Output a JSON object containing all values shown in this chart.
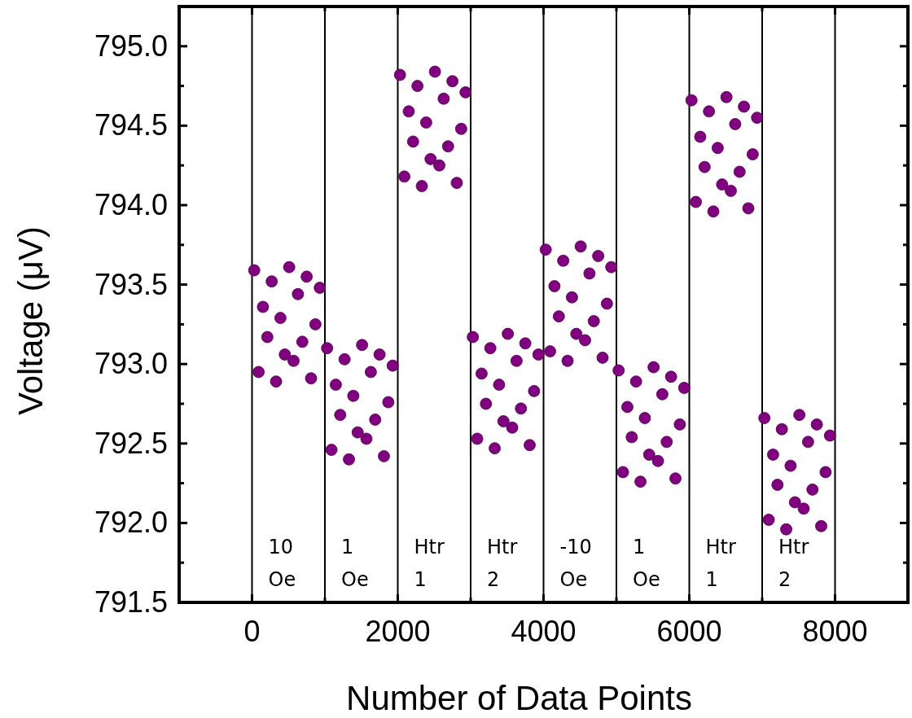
{
  "chart_data": {
    "type": "scatter",
    "xlabel": "Number of Data Points",
    "ylabel": "Voltage (μV)",
    "xlim": [
      -1000,
      9000
    ],
    "ylim": [
      791.5,
      795.25
    ],
    "xticks": [
      0,
      {
        "value": 1000,
        "label": null
      },
      2000,
      {
        "value": 3000,
        "label": null
      },
      4000,
      {
        "value": 5000,
        "label": null
      },
      6000,
      {
        "value": 7000,
        "label": null
      },
      8000
    ],
    "yticks": [
      {
        "value": 791.5,
        "label": "791.5"
      },
      {
        "value": 791.75,
        "label": null
      },
      {
        "value": 792,
        "label": "792.0"
      },
      {
        "value": 792.25,
        "label": null
      },
      {
        "value": 792.5,
        "label": "792.5"
      },
      {
        "value": 792.75,
        "label": null
      },
      {
        "value": 793,
        "label": "793.0"
      },
      {
        "value": 793.25,
        "label": null
      },
      {
        "value": 793.5,
        "label": "793.5"
      },
      {
        "value": 793.75,
        "label": null
      },
      {
        "value": 794,
        "label": "794.0"
      },
      {
        "value": 794.25,
        "label": null
      },
      {
        "value": 794.5,
        "label": "794.5"
      },
      {
        "value": 794.75,
        "label": null
      },
      {
        "value": 795,
        "label": "795.0"
      }
    ],
    "grid": false,
    "marker": "circle",
    "ref_lines": [
      {
        "axis": "x",
        "value": 0,
        "color": "#000000"
      },
      {
        "axis": "x",
        "value": 1000,
        "color": "#000000"
      },
      {
        "axis": "x",
        "value": 2000,
        "color": "#000000"
      },
      {
        "axis": "x",
        "value": 3000,
        "color": "#000000"
      },
      {
        "axis": "x",
        "value": 4000,
        "color": "#000000"
      },
      {
        "axis": "x",
        "value": 5000,
        "color": "#000000"
      },
      {
        "axis": "x",
        "value": 6000,
        "color": "#000000"
      },
      {
        "axis": "x",
        "value": 7000,
        "color": "#000000"
      },
      {
        "axis": "x",
        "value": 8000,
        "color": "#000000"
      }
    ],
    "annotations": [
      "10\nOe",
      "1\nOe",
      "Htr\n1",
      "Htr\n2",
      "-10\nOe",
      "1\nOe",
      "Htr\n1",
      "Htr\n2"
    ],
    "series": [
      {
        "color": "#800080",
        "x": [
          30,
          90,
          150,
          210,
          270,
          330,
          390,
          450,
          510,
          570,
          630,
          690,
          750,
          810,
          870,
          930
        ],
        "values": [
          793.59,
          792.95,
          793.36,
          793.17,
          793.52,
          792.89,
          793.29,
          793.06,
          793.61,
          793.02,
          793.44,
          793.14,
          793.55,
          792.91,
          793.25,
          793.48
        ]
      },
      {
        "color": "#800080",
        "x": [
          1030,
          1090,
          1150,
          1210,
          1270,
          1330,
          1390,
          1450,
          1510,
          1570,
          1630,
          1690,
          1750,
          1810,
          1870,
          1930
        ],
        "values": [
          793.1,
          792.46,
          792.87,
          792.68,
          793.03,
          792.4,
          792.8,
          792.57,
          793.12,
          792.53,
          792.95,
          792.65,
          793.06,
          792.42,
          792.76,
          792.99
        ]
      },
      {
        "color": "#800080",
        "x": [
          2030,
          2090,
          2150,
          2210,
          2270,
          2330,
          2390,
          2450,
          2510,
          2570,
          2630,
          2690,
          2750,
          2810,
          2870,
          2930
        ],
        "values": [
          794.82,
          794.18,
          794.59,
          794.4,
          794.75,
          794.12,
          794.52,
          794.29,
          794.84,
          794.25,
          794.67,
          794.37,
          794.78,
          794.14,
          794.48,
          794.71
        ]
      },
      {
        "color": "#800080",
        "x": [
          3030,
          3090,
          3150,
          3210,
          3270,
          3330,
          3390,
          3450,
          3510,
          3570,
          3630,
          3690,
          3750,
          3810,
          3870,
          3930
        ],
        "values": [
          793.17,
          792.53,
          792.94,
          792.75,
          793.1,
          792.47,
          792.87,
          792.64,
          793.19,
          792.6,
          793.02,
          792.72,
          793.13,
          792.49,
          792.83,
          793.06
        ]
      },
      {
        "color": "#800080",
        "x": [
          4030,
          4090,
          4150,
          4210,
          4270,
          4330,
          4390,
          4450,
          4510,
          4570,
          4630,
          4690,
          4750,
          4810,
          4870,
          4930
        ],
        "values": [
          793.72,
          793.08,
          793.49,
          793.3,
          793.65,
          793.02,
          793.42,
          793.19,
          793.74,
          793.15,
          793.57,
          793.27,
          793.68,
          793.04,
          793.38,
          793.61
        ]
      },
      {
        "color": "#800080",
        "x": [
          5030,
          5090,
          5150,
          5210,
          5270,
          5330,
          5390,
          5450,
          5510,
          5570,
          5630,
          5690,
          5750,
          5810,
          5870,
          5930
        ],
        "values": [
          792.96,
          792.32,
          792.73,
          792.54,
          792.89,
          792.26,
          792.66,
          792.43,
          792.98,
          792.39,
          792.81,
          792.51,
          792.92,
          792.28,
          792.62,
          792.85
        ]
      },
      {
        "color": "#800080",
        "x": [
          6030,
          6090,
          6150,
          6210,
          6270,
          6330,
          6390,
          6450,
          6510,
          6570,
          6630,
          6690,
          6750,
          6810,
          6870,
          6930
        ],
        "values": [
          794.66,
          794.02,
          794.43,
          794.24,
          794.59,
          793.96,
          794.36,
          794.13,
          794.68,
          794.09,
          794.51,
          794.21,
          794.62,
          793.98,
          794.32,
          794.55
        ]
      },
      {
        "color": "#800080",
        "x": [
          7030,
          7090,
          7150,
          7210,
          7270,
          7330,
          7390,
          7450,
          7510,
          7570,
          7630,
          7690,
          7750,
          7810,
          7870,
          7930
        ],
        "values": [
          792.66,
          792.02,
          792.43,
          792.24,
          792.59,
          791.96,
          792.36,
          792.13,
          792.68,
          792.09,
          792.51,
          792.21,
          792.62,
          791.98,
          792.32,
          792.55
        ]
      }
    ]
  }
}
